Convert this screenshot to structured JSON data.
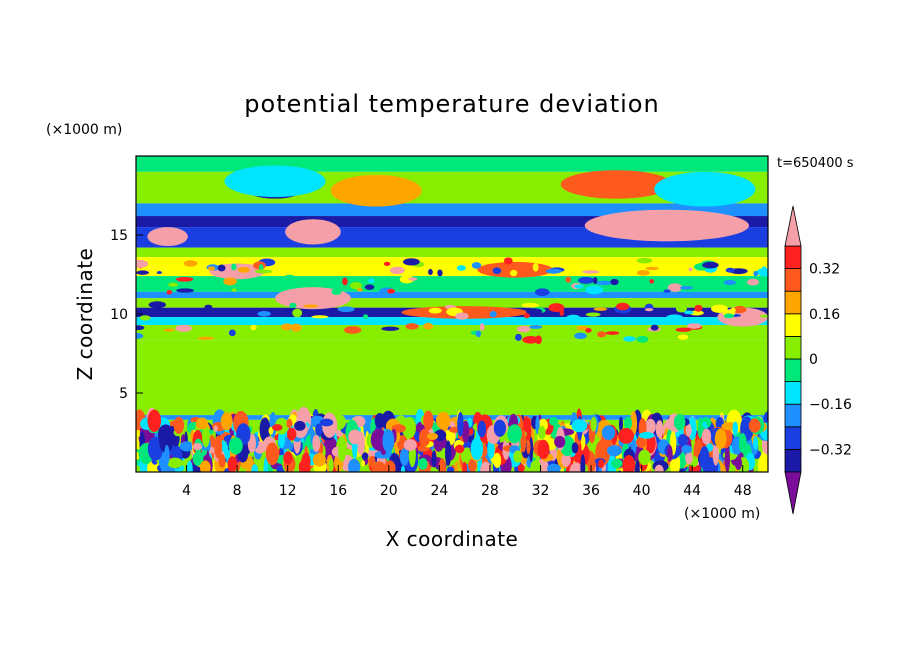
{
  "chart_data": {
    "type": "heatmap",
    "title": "potential temperature deviation",
    "xlabel": "X coordinate",
    "ylabel": "Z coordinate",
    "x_unit": "(×1000 m)",
    "y_unit": "(×1000 m)",
    "time_label": "t=650400 s",
    "xlim": [
      0,
      50
    ],
    "ylim": [
      0,
      20
    ],
    "x_ticks": [
      4,
      8,
      12,
      16,
      20,
      24,
      28,
      32,
      36,
      40,
      44,
      48
    ],
    "y_ticks": [
      5,
      10,
      15
    ],
    "colorbar": {
      "levels": [
        -0.4,
        -0.32,
        -0.24,
        -0.16,
        -0.08,
        0,
        0.08,
        0.16,
        0.24,
        0.32,
        0.4
      ],
      "colors": [
        "#7b0d9b",
        "#1a1aa6",
        "#1a3ee0",
        "#1e90ff",
        "#00e5ff",
        "#00e87a",
        "#88ee00",
        "#ffff00",
        "#ffa500",
        "#ff5a1e",
        "#ff2020",
        "#f5a0a8"
      ],
      "tick_values": [
        0.32,
        0.16,
        0,
        -0.16,
        -0.32
      ],
      "tick_labels": [
        "0.32",
        "0.16",
        "0",
        "−0.16",
        "−0.32"
      ]
    },
    "layers": [
      {
        "z": [
          19.0,
          20.0
        ],
        "value": -0.05
      },
      {
        "z": [
          17.0,
          19.0
        ],
        "value": 0.03
      },
      {
        "z": [
          16.2,
          17.0
        ],
        "value": -0.2
      },
      {
        "z": [
          15.5,
          16.2
        ],
        "value": -0.36
      },
      {
        "z": [
          14.2,
          15.5
        ],
        "value": -0.3
      },
      {
        "z": [
          13.6,
          14.2
        ],
        "value": 0.03
      },
      {
        "z": [
          12.4,
          13.6
        ],
        "value": 0.1
      },
      {
        "z": [
          11.4,
          12.4
        ],
        "value": -0.08
      },
      {
        "z": [
          11.0,
          11.4
        ],
        "value": -0.22
      },
      {
        "z": [
          10.4,
          11.0
        ],
        "value": 0.02
      },
      {
        "z": [
          9.8,
          10.4
        ],
        "value": -0.36
      },
      {
        "z": [
          9.3,
          9.8
        ],
        "value": -0.12
      },
      {
        "z": [
          8.3,
          9.3
        ],
        "value": 0.03
      },
      {
        "z": [
          3.6,
          8.3
        ],
        "value": 0.07
      },
      {
        "z": [
          3.3,
          3.6
        ],
        "value": -0.2
      },
      {
        "z": [
          0.0,
          3.3
        ],
        "value": 0.04
      }
    ],
    "features": [
      {
        "x": 11,
        "z": 18.0,
        "rx": 2.4,
        "rz": 0.7,
        "value": -0.4
      },
      {
        "x": 11,
        "z": 18.4,
        "rx": 4.0,
        "rz": 1.0,
        "value": -0.16
      },
      {
        "x": 19,
        "z": 17.6,
        "rx": 2.0,
        "rz": 0.6,
        "value": 0.4
      },
      {
        "x": 19,
        "z": 17.8,
        "rx": 3.6,
        "rz": 1.0,
        "value": 0.16
      },
      {
        "x": 38,
        "z": 18.2,
        "rx": 4.4,
        "rz": 0.9,
        "value": 0.3
      },
      {
        "x": 45,
        "z": 17.6,
        "rx": 2.4,
        "rz": 0.7,
        "value": -0.4
      },
      {
        "x": 45,
        "z": 17.9,
        "rx": 4.0,
        "rz": 1.1,
        "value": -0.16
      },
      {
        "x": 2.5,
        "z": 14.9,
        "rx": 1.6,
        "rz": 0.6,
        "value": 0.4
      },
      {
        "x": 14,
        "z": 15.2,
        "rx": 2.2,
        "rz": 0.8,
        "value": 0.4
      },
      {
        "x": 8,
        "z": 12.7,
        "rx": 2.2,
        "rz": 0.5,
        "value": 0.4
      },
      {
        "x": 14,
        "z": 11.0,
        "rx": 3.0,
        "rz": 0.7,
        "value": 0.4
      },
      {
        "x": 30,
        "z": 12.8,
        "rx": 3.0,
        "rz": 0.5,
        "value": 0.3
      },
      {
        "x": 42,
        "z": 15.6,
        "rx": 6.5,
        "rz": 1.0,
        "value": 0.4
      },
      {
        "x": 26,
        "z": 10.1,
        "rx": 5.0,
        "rz": 0.4,
        "value": 0.3
      },
      {
        "x": 48,
        "z": 9.8,
        "rx": 2.0,
        "rz": 0.6,
        "value": 0.4
      }
    ]
  }
}
